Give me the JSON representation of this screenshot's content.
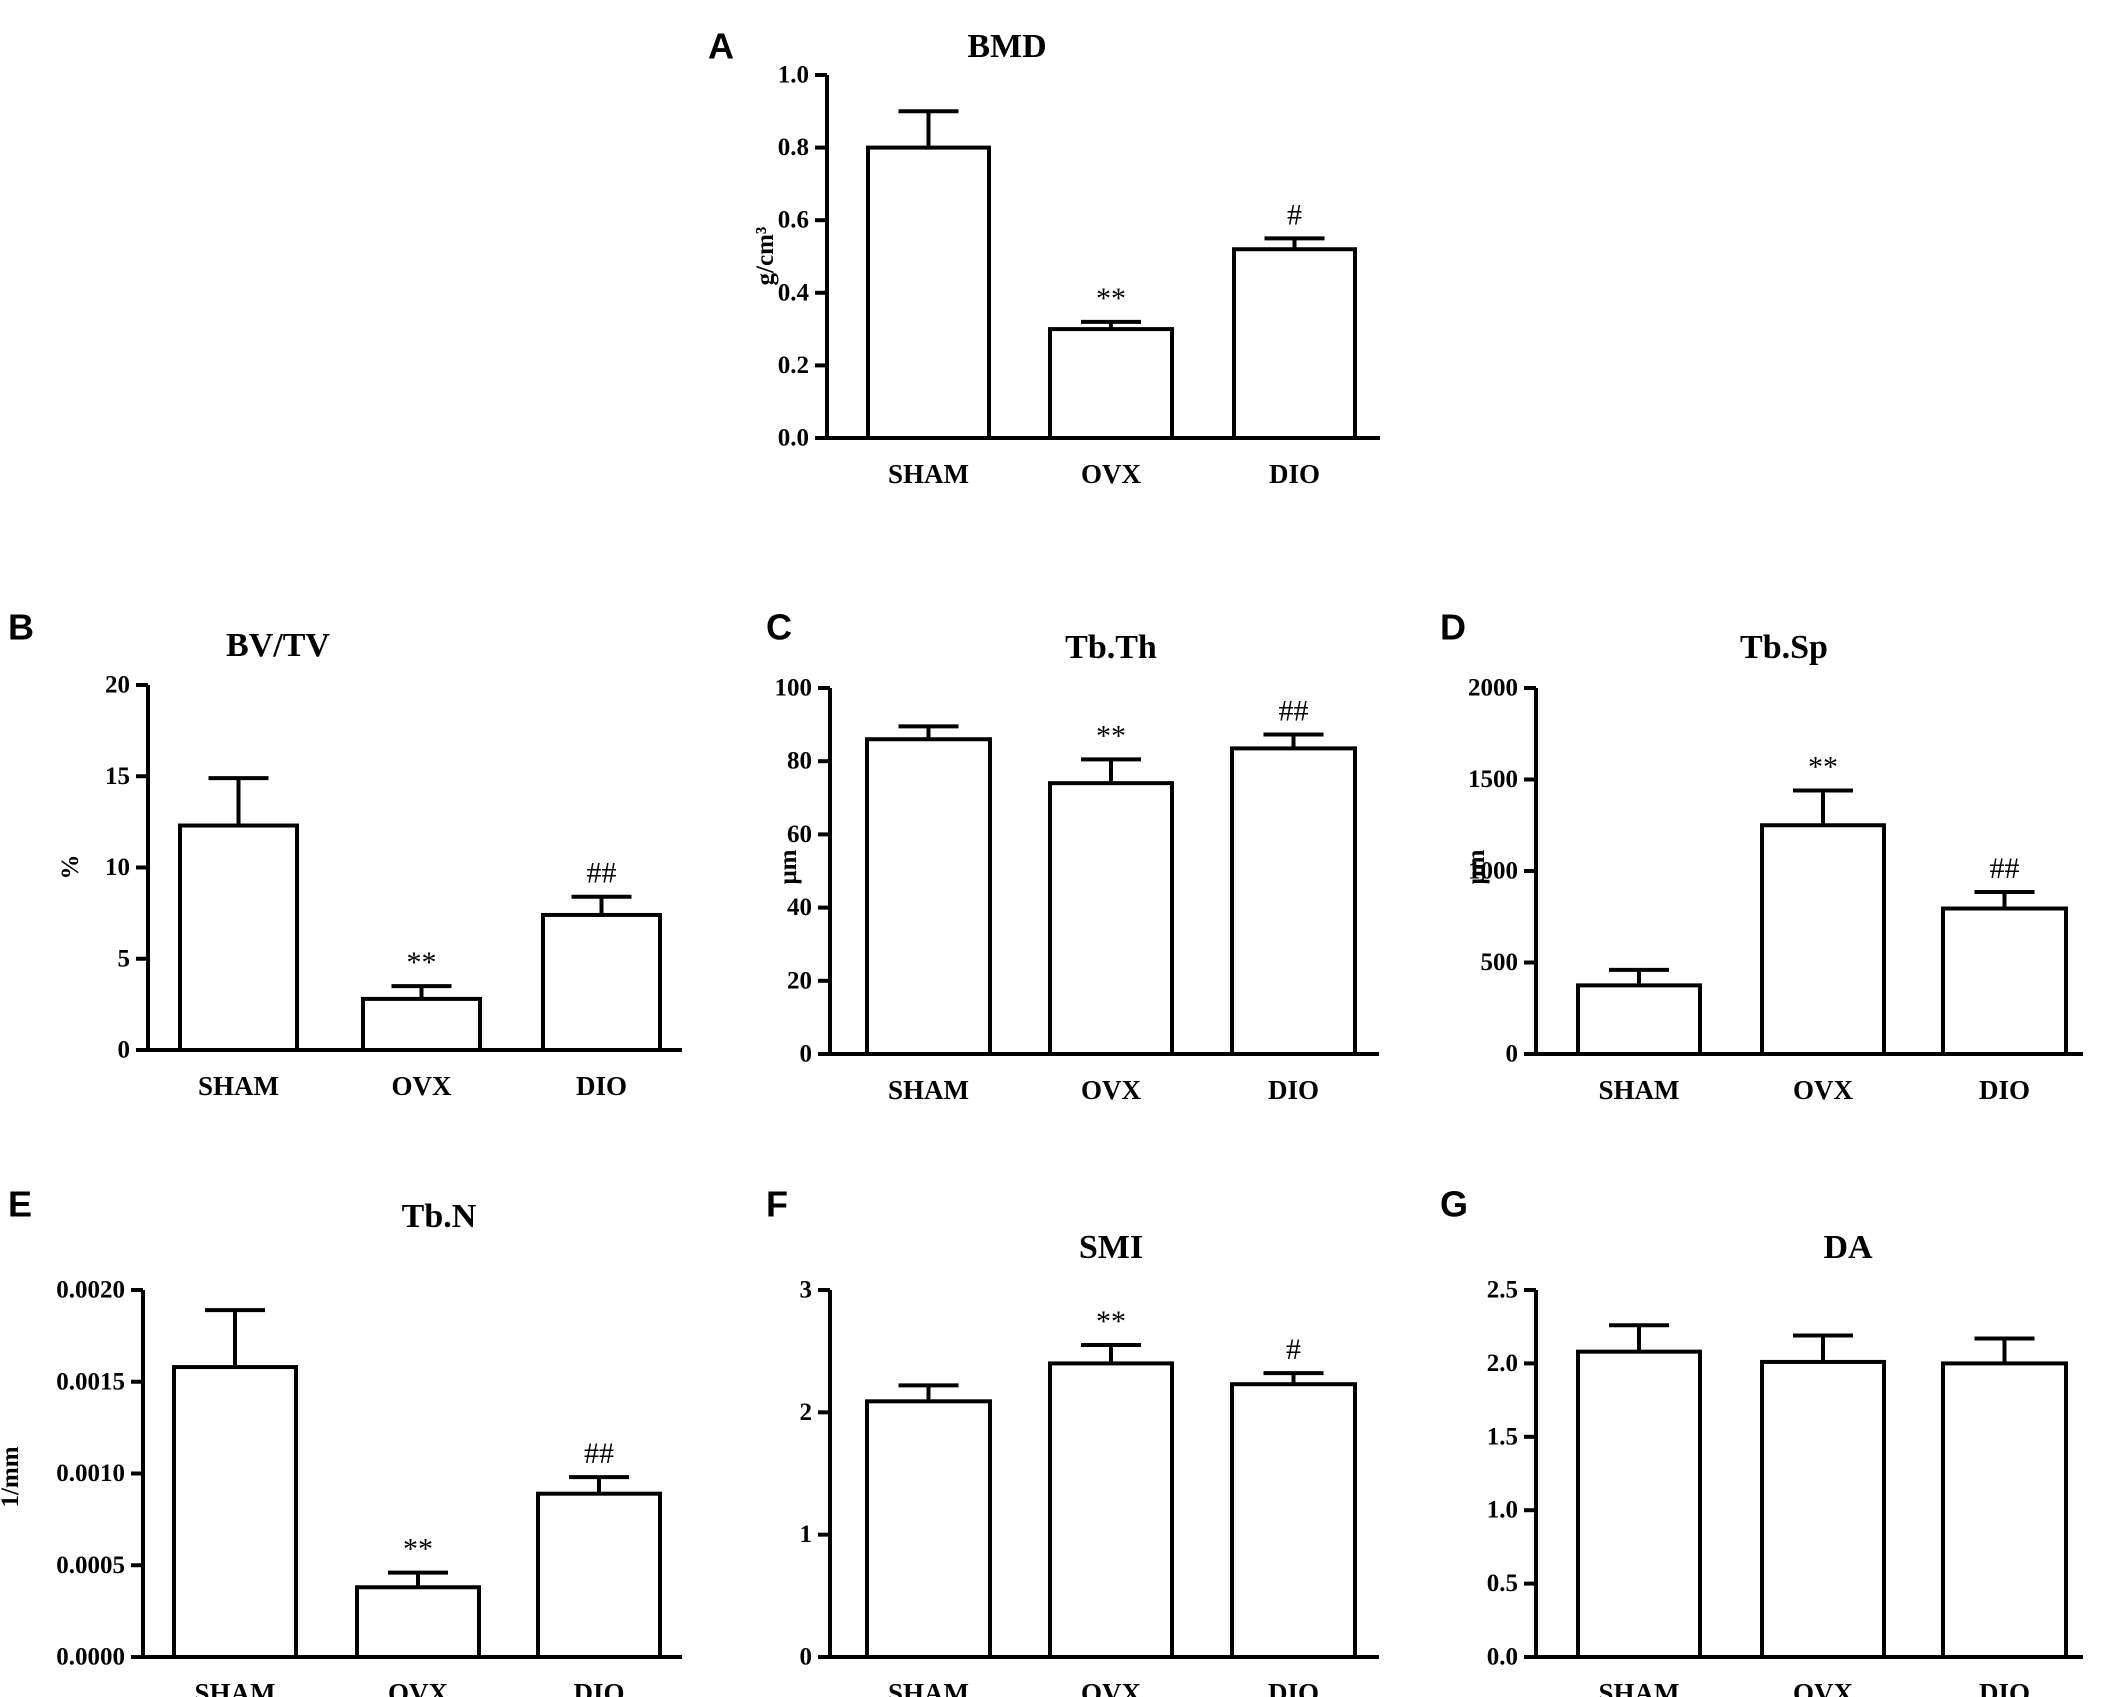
{
  "chart_data": [
    {
      "type": "bar",
      "panel": "A",
      "title": "BMD",
      "ylabel": "g/cm³",
      "categories": [
        "SHAM",
        "OVX",
        "DIO"
      ],
      "values": [
        0.8,
        0.3,
        0.52
      ],
      "errors": [
        0.1,
        0.02,
        0.03
      ],
      "significance": [
        "",
        "**",
        "#"
      ],
      "ylim": [
        0,
        1.0
      ],
      "yticks": [
        "0.0",
        "0.2",
        "0.4",
        "0.6",
        "0.8",
        "1.0"
      ]
    },
    {
      "type": "bar",
      "panel": "B",
      "title": "BV/TV",
      "ylabel": "%",
      "categories": [
        "SHAM",
        "OVX",
        "DIO"
      ],
      "values": [
        12.3,
        2.8,
        7.4
      ],
      "errors": [
        2.6,
        0.7,
        1.0
      ],
      "significance": [
        "",
        "**",
        "##"
      ],
      "ylim": [
        0,
        20
      ],
      "yticks": [
        "0",
        "5",
        "10",
        "15",
        "20"
      ]
    },
    {
      "type": "bar",
      "panel": "C",
      "title": "Tb.Th",
      "ylabel": "μm",
      "categories": [
        "SHAM",
        "OVX",
        "DIO"
      ],
      "values": [
        86,
        74,
        83.5
      ],
      "errors": [
        3.5,
        6.5,
        3.8
      ],
      "significance": [
        "",
        "**",
        "##"
      ],
      "ylim": [
        0,
        100
      ],
      "yticks": [
        "0",
        "20",
        "40",
        "60",
        "80",
        "100"
      ]
    },
    {
      "type": "bar",
      "panel": "D",
      "title": "Tb.Sp",
      "ylabel": "μm",
      "categories": [
        "SHAM",
        "OVX",
        "DIO"
      ],
      "values": [
        375,
        1250,
        795
      ],
      "errors": [
        85,
        190,
        90
      ],
      "significance": [
        "",
        "**",
        "##"
      ],
      "ylim": [
        0,
        2000
      ],
      "yticks": [
        "0",
        "500",
        "1000",
        "1500",
        "2000"
      ]
    },
    {
      "type": "bar",
      "panel": "E",
      "title": "Tb.N",
      "ylabel": "1/mm",
      "categories": [
        "SHAM",
        "OVX",
        "DIO"
      ],
      "values": [
        0.00158,
        0.00038,
        0.00089
      ],
      "errors": [
        0.00031,
        8e-05,
        9e-05
      ],
      "significance": [
        "",
        "**",
        "##"
      ],
      "ylim": [
        0,
        0.002
      ],
      "yticks": [
        "0.0000",
        "0.0005",
        "0.0010",
        "0.0015",
        "0.0020"
      ]
    },
    {
      "type": "bar",
      "panel": "F",
      "title": "SMI",
      "ylabel": "",
      "categories": [
        "SHAM",
        "OVX",
        "DIO"
      ],
      "values": [
        2.09,
        2.4,
        2.23
      ],
      "errors": [
        0.13,
        0.15,
        0.09
      ],
      "significance": [
        "",
        "**",
        "#"
      ],
      "ylim": [
        0,
        3
      ],
      "yticks": [
        "0",
        "1",
        "2",
        "3"
      ]
    },
    {
      "type": "bar",
      "panel": "G",
      "title": "DA",
      "ylabel": "",
      "categories": [
        "SHAM",
        "OVX",
        "DIO"
      ],
      "values": [
        2.08,
        2.01,
        2.0
      ],
      "errors": [
        0.18,
        0.18,
        0.17
      ],
      "significance": [
        "",
        "",
        ""
      ],
      "ylim": [
        0,
        2.5
      ],
      "yticks": [
        "0.0",
        "0.5",
        "1.0",
        "1.5",
        "2.0",
        "2.5"
      ]
    }
  ]
}
